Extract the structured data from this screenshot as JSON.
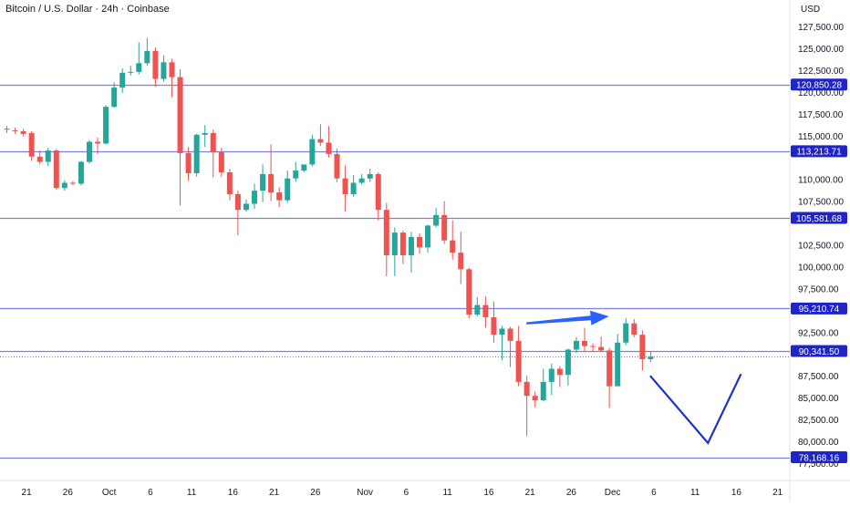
{
  "header": {
    "title": "Bitcoin / U.S. Dollar · 24h · Coinbase",
    "currency": "USD"
  },
  "chart_data": {
    "type": "candlestick",
    "y_axis": {
      "min": 76000,
      "max": 130000,
      "ticks": [
        "77,500.00",
        "80,000.00",
        "82,500.00",
        "85,000.00",
        "87,500.00",
        "92,500.00",
        "97,500.00",
        "100,000.00",
        "102,500.00",
        "107,500.00",
        "110,000.00",
        "115,000.00",
        "117,500.00",
        "120,000.00",
        "122,500.00",
        "125,000.00",
        "127,500.00"
      ]
    },
    "x_axis": {
      "start_date": "2025-09-19",
      "end_date": "2025-12-21",
      "ticks": [
        {
          "date": "2025-09-21",
          "label": "21"
        },
        {
          "date": "2025-09-26",
          "label": "26"
        },
        {
          "date": "2025-10-01",
          "label": "Oct"
        },
        {
          "date": "2025-10-06",
          "label": "6"
        },
        {
          "date": "2025-10-11",
          "label": "11"
        },
        {
          "date": "2025-10-16",
          "label": "16"
        },
        {
          "date": "2025-10-21",
          "label": "21"
        },
        {
          "date": "2025-10-26",
          "label": "26"
        },
        {
          "date": "2025-11-01",
          "label": "Nov"
        },
        {
          "date": "2025-11-06",
          "label": "6"
        },
        {
          "date": "2025-11-11",
          "label": "11"
        },
        {
          "date": "2025-11-16",
          "label": "16"
        },
        {
          "date": "2025-11-21",
          "label": "21"
        },
        {
          "date": "2025-11-26",
          "label": "26"
        },
        {
          "date": "2025-12-01",
          "label": "Dec"
        },
        {
          "date": "2025-12-06",
          "label": "6"
        },
        {
          "date": "2025-12-11",
          "label": "11"
        },
        {
          "date": "2025-12-16",
          "label": "16"
        },
        {
          "date": "2025-12-21",
          "label": "21"
        }
      ]
    },
    "horizontal_levels": [
      {
        "value": 120850.28,
        "label": "120,850.28"
      },
      {
        "value": 113213.71,
        "label": "113,213.71"
      },
      {
        "value": 105581.68,
        "label": "105,581.68"
      },
      {
        "value": 95210.74,
        "label": "95,210.74"
      },
      {
        "value": 90341.5,
        "label": "90,341.50"
      },
      {
        "value": 78168.16,
        "label": "78,168.16"
      }
    ],
    "last_price": 89700,
    "candles": [
      {
        "date": "2025-09-19",
        "o": 115800,
        "h": 116100,
        "l": 115300,
        "c": 115700
      },
      {
        "date": "2025-09-20",
        "o": 115600,
        "h": 115900,
        "l": 115200,
        "c": 115500
      },
      {
        "date": "2025-09-21",
        "o": 115500,
        "h": 115800,
        "l": 114900,
        "c": 115200
      },
      {
        "date": "2025-09-22",
        "o": 115300,
        "h": 115500,
        "l": 112100,
        "c": 112600
      },
      {
        "date": "2025-09-23",
        "o": 112600,
        "h": 113300,
        "l": 111700,
        "c": 112000
      },
      {
        "date": "2025-09-24",
        "o": 112000,
        "h": 113600,
        "l": 111500,
        "c": 113300
      },
      {
        "date": "2025-09-25",
        "o": 113300,
        "h": 113500,
        "l": 108800,
        "c": 109000
      },
      {
        "date": "2025-09-26",
        "o": 109000,
        "h": 109900,
        "l": 108700,
        "c": 109600
      },
      {
        "date": "2025-09-27",
        "o": 109600,
        "h": 109800,
        "l": 109300,
        "c": 109500
      },
      {
        "date": "2025-09-28",
        "o": 109500,
        "h": 112100,
        "l": 109300,
        "c": 112000
      },
      {
        "date": "2025-09-29",
        "o": 112000,
        "h": 114500,
        "l": 111800,
        "c": 114300
      },
      {
        "date": "2025-09-30",
        "o": 114300,
        "h": 114800,
        "l": 112900,
        "c": 114100
      },
      {
        "date": "2025-10-01",
        "o": 114100,
        "h": 118500,
        "l": 114000,
        "c": 118300
      },
      {
        "date": "2025-10-02",
        "o": 118300,
        "h": 121100,
        "l": 118200,
        "c": 120500
      },
      {
        "date": "2025-10-03",
        "o": 120500,
        "h": 122700,
        "l": 119900,
        "c": 122200
      },
      {
        "date": "2025-10-04",
        "o": 122200,
        "h": 123000,
        "l": 121900,
        "c": 122300
      },
      {
        "date": "2025-10-05",
        "o": 122300,
        "h": 125700,
        "l": 122000,
        "c": 123300
      },
      {
        "date": "2025-10-06",
        "o": 123300,
        "h": 126200,
        "l": 123000,
        "c": 124700
      },
      {
        "date": "2025-10-07",
        "o": 124700,
        "h": 125100,
        "l": 120600,
        "c": 121500
      },
      {
        "date": "2025-10-08",
        "o": 121500,
        "h": 124200,
        "l": 121200,
        "c": 123400
      },
      {
        "date": "2025-10-09",
        "o": 123400,
        "h": 123800,
        "l": 119400,
        "c": 121700
      },
      {
        "date": "2025-10-10",
        "o": 121700,
        "h": 122600,
        "l": 107000,
        "c": 113000
      },
      {
        "date": "2025-10-11",
        "o": 113000,
        "h": 113700,
        "l": 109800,
        "c": 110700
      },
      {
        "date": "2025-10-12",
        "o": 110700,
        "h": 115200,
        "l": 110300,
        "c": 115100
      },
      {
        "date": "2025-10-13",
        "o": 115100,
        "h": 116200,
        "l": 113700,
        "c": 115300
      },
      {
        "date": "2025-10-14",
        "o": 115300,
        "h": 115700,
        "l": 110200,
        "c": 113100
      },
      {
        "date": "2025-10-15",
        "o": 113100,
        "h": 113600,
        "l": 110300,
        "c": 110800
      },
      {
        "date": "2025-10-16",
        "o": 110800,
        "h": 111200,
        "l": 107600,
        "c": 108300
      },
      {
        "date": "2025-10-17",
        "o": 108300,
        "h": 108700,
        "l": 103600,
        "c": 106500
      },
      {
        "date": "2025-10-18",
        "o": 106500,
        "h": 107700,
        "l": 106300,
        "c": 107200
      },
      {
        "date": "2025-10-19",
        "o": 107200,
        "h": 109500,
        "l": 106600,
        "c": 108700
      },
      {
        "date": "2025-10-20",
        "o": 108700,
        "h": 111700,
        "l": 107400,
        "c": 110600
      },
      {
        "date": "2025-10-21",
        "o": 110600,
        "h": 114000,
        "l": 107500,
        "c": 108500
      },
      {
        "date": "2025-10-22",
        "o": 108500,
        "h": 109100,
        "l": 106800,
        "c": 107600
      },
      {
        "date": "2025-10-23",
        "o": 107600,
        "h": 111000,
        "l": 107300,
        "c": 110100
      },
      {
        "date": "2025-10-24",
        "o": 110100,
        "h": 112000,
        "l": 109700,
        "c": 111000
      },
      {
        "date": "2025-10-25",
        "o": 111000,
        "h": 111500,
        "l": 110800,
        "c": 111700
      },
      {
        "date": "2025-10-26",
        "o": 111700,
        "h": 115100,
        "l": 111500,
        "c": 114600
      },
      {
        "date": "2025-10-27",
        "o": 114600,
        "h": 116300,
        "l": 113800,
        "c": 114200
      },
      {
        "date": "2025-10-28",
        "o": 114200,
        "h": 116100,
        "l": 112500,
        "c": 112900
      },
      {
        "date": "2025-10-29",
        "o": 112900,
        "h": 113500,
        "l": 109700,
        "c": 110100
      },
      {
        "date": "2025-10-30",
        "o": 110100,
        "h": 111600,
        "l": 106300,
        "c": 108300
      },
      {
        "date": "2025-10-31",
        "o": 108300,
        "h": 110500,
        "l": 108000,
        "c": 109600
      },
      {
        "date": "2025-11-01",
        "o": 109600,
        "h": 110600,
        "l": 109400,
        "c": 110100
      },
      {
        "date": "2025-11-02",
        "o": 110100,
        "h": 111200,
        "l": 109700,
        "c": 110600
      },
      {
        "date": "2025-11-03",
        "o": 110600,
        "h": 110800,
        "l": 105300,
        "c": 106500
      },
      {
        "date": "2025-11-04",
        "o": 106500,
        "h": 107300,
        "l": 98900,
        "c": 101300
      },
      {
        "date": "2025-11-05",
        "o": 101300,
        "h": 104500,
        "l": 98900,
        "c": 103900
      },
      {
        "date": "2025-11-06",
        "o": 103900,
        "h": 104100,
        "l": 100300,
        "c": 101300
      },
      {
        "date": "2025-11-07",
        "o": 101300,
        "h": 104000,
        "l": 99300,
        "c": 103400
      },
      {
        "date": "2025-11-08",
        "o": 103400,
        "h": 103800,
        "l": 101500,
        "c": 102200
      },
      {
        "date": "2025-11-09",
        "o": 102200,
        "h": 104800,
        "l": 101600,
        "c": 104700
      },
      {
        "date": "2025-11-10",
        "o": 104700,
        "h": 106700,
        "l": 104500,
        "c": 105900
      },
      {
        "date": "2025-11-11",
        "o": 105900,
        "h": 107500,
        "l": 102600,
        "c": 103000
      },
      {
        "date": "2025-11-12",
        "o": 103000,
        "h": 105300,
        "l": 100800,
        "c": 101600
      },
      {
        "date": "2025-11-13",
        "o": 101600,
        "h": 104000,
        "l": 98000,
        "c": 99700
      },
      {
        "date": "2025-11-14",
        "o": 99700,
        "h": 99900,
        "l": 94100,
        "c": 94500
      },
      {
        "date": "2025-11-15",
        "o": 94500,
        "h": 96500,
        "l": 94300,
        "c": 95600
      },
      {
        "date": "2025-11-16",
        "o": 95600,
        "h": 96600,
        "l": 93000,
        "c": 94200
      },
      {
        "date": "2025-11-17",
        "o": 94200,
        "h": 96000,
        "l": 91300,
        "c": 92200
      },
      {
        "date": "2025-11-18",
        "o": 92200,
        "h": 93200,
        "l": 89300,
        "c": 92900
      },
      {
        "date": "2025-11-19",
        "o": 92900,
        "h": 93100,
        "l": 88500,
        "c": 91500
      },
      {
        "date": "2025-11-20",
        "o": 91500,
        "h": 93200,
        "l": 86300,
        "c": 86800
      },
      {
        "date": "2025-11-21",
        "o": 86800,
        "h": 87500,
        "l": 80600,
        "c": 85200
      },
      {
        "date": "2025-11-22",
        "o": 85200,
        "h": 85700,
        "l": 83900,
        "c": 84700
      },
      {
        "date": "2025-11-23",
        "o": 84700,
        "h": 88300,
        "l": 84600,
        "c": 86800
      },
      {
        "date": "2025-11-24",
        "o": 86800,
        "h": 88900,
        "l": 85300,
        "c": 88300
      },
      {
        "date": "2025-11-25",
        "o": 88300,
        "h": 88600,
        "l": 86200,
        "c": 87600
      },
      {
        "date": "2025-11-26",
        "o": 87600,
        "h": 90600,
        "l": 86400,
        "c": 90500
      },
      {
        "date": "2025-11-27",
        "o": 90500,
        "h": 91900,
        "l": 90100,
        "c": 91500
      },
      {
        "date": "2025-11-28",
        "o": 91500,
        "h": 93000,
        "l": 90200,
        "c": 90900
      },
      {
        "date": "2025-11-29",
        "o": 90900,
        "h": 91200,
        "l": 90300,
        "c": 90800
      },
      {
        "date": "2025-11-30",
        "o": 90800,
        "h": 92000,
        "l": 90300,
        "c": 90400
      },
      {
        "date": "2025-12-01",
        "o": 90400,
        "h": 90700,
        "l": 83800,
        "c": 86300
      },
      {
        "date": "2025-12-02",
        "o": 86300,
        "h": 92300,
        "l": 86300,
        "c": 91300
      },
      {
        "date": "2025-12-03",
        "o": 91300,
        "h": 94100,
        "l": 91000,
        "c": 93500
      },
      {
        "date": "2025-12-04",
        "o": 93500,
        "h": 94000,
        "l": 91900,
        "c": 92200
      },
      {
        "date": "2025-12-05",
        "o": 92200,
        "h": 92700,
        "l": 88100,
        "c": 89400
      },
      {
        "date": "2025-12-06",
        "o": 89400,
        "h": 90300,
        "l": 89100,
        "c": 89700
      }
    ],
    "annotations": [
      {
        "type": "arrow",
        "from": {
          "date": "2025-11-21",
          "value": 93500
        },
        "to": {
          "date": "2025-12-01",
          "value": 94300
        },
        "color": "#2962ff"
      },
      {
        "type": "polyline",
        "points": [
          {
            "date": "2025-12-06",
            "value": 87500
          },
          {
            "date": "2025-12-13",
            "value": 79800
          },
          {
            "date": "2025-12-17",
            "value": 87700
          }
        ],
        "color": "#1e2fd0"
      }
    ],
    "colors": {
      "up": "#26a69a",
      "down": "#ef5350",
      "level_line": "#7b7fe0",
      "level_label_bg": "#1f24c9",
      "level_label_text": "#ffffff",
      "price_line": "#26a69a"
    }
  }
}
